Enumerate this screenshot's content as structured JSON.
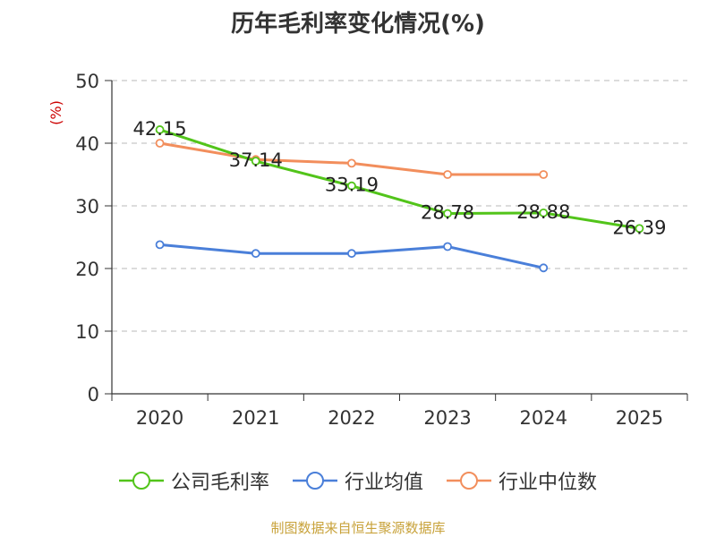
{
  "title": "历年毛利率变化情况(%)",
  "source": "制图数据来自恒生聚源数据库",
  "chart_data": {
    "type": "line",
    "title": "历年毛利率变化情况(%)",
    "ylabel": "(%)",
    "xlabel": "",
    "categories": [
      "2020",
      "2021",
      "2022",
      "2023",
      "2024",
      "2025"
    ],
    "ylim": [
      0,
      50
    ],
    "yticks": [
      0,
      10,
      20,
      30,
      40,
      50
    ],
    "grid": true,
    "legend_position": "bottom",
    "series": [
      {
        "name": "公司毛利率",
        "color": "#52c41a",
        "values": [
          42.15,
          37.14,
          33.19,
          28.78,
          28.88,
          26.39
        ],
        "labels": [
          "42.15",
          "37.14",
          "33.19",
          "28.78",
          "28.88",
          "26.39"
        ]
      },
      {
        "name": "行业均值",
        "color": "#4a7fd9",
        "values": [
          23.8,
          22.4,
          22.4,
          23.5,
          20.1,
          null
        ]
      },
      {
        "name": "行业中位数",
        "color": "#f28e5c",
        "values": [
          40.0,
          37.4,
          36.8,
          35.0,
          35.0,
          null
        ]
      }
    ]
  }
}
